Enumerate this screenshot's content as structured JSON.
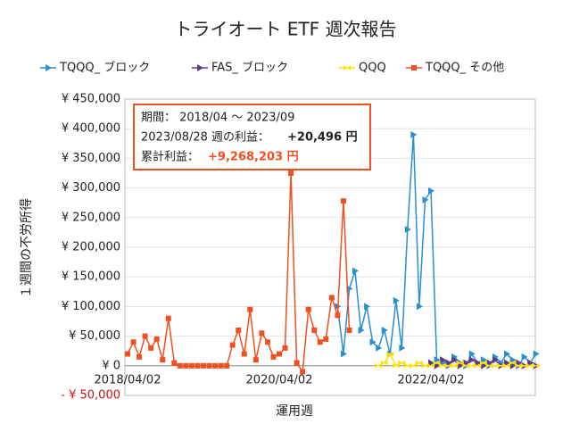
{
  "chart_data": {
    "type": "line",
    "title": "トライオート ETF 週次報告",
    "y_label": "１週間の不労所得",
    "x_label": "運用週",
    "categories": [
      "2018/04/02",
      null,
      null,
      null,
      null,
      null,
      null,
      null,
      null,
      null,
      null,
      null,
      null,
      null,
      null,
      null,
      null,
      null,
      null,
      null,
      null,
      null,
      null,
      null,
      null,
      null,
      "2020/04/02",
      null,
      null,
      null,
      null,
      null,
      null,
      null,
      null,
      null,
      null,
      null,
      null,
      null,
      null,
      null,
      null,
      null,
      null,
      null,
      null,
      null,
      null,
      null,
      null,
      null,
      "2022/04/02",
      null,
      null,
      null,
      null,
      null,
      null,
      null,
      null,
      null,
      null,
      null,
      null,
      null,
      null,
      null,
      null,
      null,
      null
    ],
    "series": [
      {
        "name": "TQQQ_ ブロック",
        "color": "#2a8fd0",
        "marker": "triangle",
        "values": [
          null,
          null,
          null,
          null,
          null,
          null,
          null,
          null,
          null,
          null,
          null,
          null,
          null,
          null,
          null,
          null,
          null,
          null,
          null,
          null,
          null,
          null,
          null,
          null,
          null,
          null,
          null,
          null,
          null,
          null,
          null,
          null,
          null,
          null,
          null,
          null,
          100000,
          20000,
          130000,
          160000,
          60000,
          100000,
          40000,
          30000,
          60000,
          20000,
          110000,
          30000,
          230000,
          390000,
          100000,
          280000,
          295000,
          10000,
          5000,
          0,
          15000,
          5000,
          0,
          20000,
          5000,
          10000,
          0,
          15000,
          5000,
          20000,
          10000,
          0,
          15000,
          5000,
          20000
        ]
      },
      {
        "name": "FAS_ ブロック",
        "color": "#5c3b8a",
        "marker": "triangle",
        "values": [
          null,
          null,
          null,
          null,
          null,
          null,
          null,
          null,
          null,
          null,
          null,
          null,
          null,
          null,
          null,
          null,
          null,
          null,
          null,
          null,
          null,
          null,
          null,
          null,
          null,
          null,
          null,
          null,
          null,
          null,
          null,
          null,
          null,
          null,
          null,
          null,
          null,
          null,
          null,
          null,
          null,
          null,
          null,
          null,
          null,
          null,
          null,
          null,
          null,
          null,
          null,
          null,
          5000,
          0,
          10000,
          5000,
          10000,
          0,
          5000,
          10000,
          5000,
          0,
          5000,
          10000,
          0,
          5000,
          0,
          5000,
          0,
          5000,
          0
        ]
      },
      {
        "name": "QQQ",
        "color": "#ffe000",
        "marker": "bowtie",
        "values": [
          null,
          null,
          null,
          null,
          null,
          null,
          null,
          null,
          null,
          null,
          null,
          null,
          null,
          null,
          null,
          null,
          null,
          null,
          null,
          null,
          null,
          null,
          null,
          null,
          null,
          null,
          null,
          null,
          null,
          null,
          null,
          null,
          null,
          null,
          null,
          null,
          null,
          null,
          null,
          null,
          null,
          null,
          null,
          0,
          5000,
          20000,
          0,
          5000,
          0,
          0,
          5000,
          0,
          0,
          5000,
          0,
          0,
          0,
          5000,
          0,
          0,
          0,
          5000,
          0,
          0,
          0,
          0,
          5000,
          0,
          0,
          0,
          0
        ]
      },
      {
        "name": "TQQQ_ その他",
        "color": "#f05020",
        "marker": "square",
        "values": [
          20000,
          40000,
          15000,
          50000,
          30000,
          45000,
          10000,
          80000,
          5000,
          0,
          0,
          0,
          0,
          0,
          0,
          0,
          0,
          0,
          35000,
          60000,
          20000,
          95000,
          10000,
          55000,
          40000,
          15000,
          20000,
          30000,
          325000,
          5000,
          -10000,
          95000,
          60000,
          40000,
          45000,
          115000,
          85000,
          278000,
          60000,
          null,
          null,
          null,
          null,
          null,
          null,
          null,
          null,
          null,
          null,
          null,
          null,
          null,
          null,
          null,
          null,
          null,
          null,
          null,
          null,
          null,
          null,
          null,
          null,
          null,
          null,
          null,
          null,
          null,
          null,
          null,
          null
        ]
      }
    ],
    "ylim": [
      -50000,
      450000
    ],
    "yticks": [
      {
        "value": -50000,
        "label": "- ¥ 50,000"
      },
      {
        "value": 0,
        "label": "¥ 0"
      },
      {
        "value": 50000,
        "label": "¥ 50,000"
      },
      {
        "value": 100000,
        "label": "¥ 100,000"
      },
      {
        "value": 150000,
        "label": "¥ 150,000"
      },
      {
        "value": 200000,
        "label": "¥ 200,000"
      },
      {
        "value": 250000,
        "label": "¥ 250,000"
      },
      {
        "value": 300000,
        "label": "¥ 300,000"
      },
      {
        "value": 350000,
        "label": "¥ 350,000"
      },
      {
        "value": 400000,
        "label": "¥ 400,000"
      },
      {
        "value": 450000,
        "label": "¥ 450,000"
      }
    ],
    "grid": true,
    "legend": "top",
    "annotation": {
      "period": "期間： 2018/04 ～ 2023/09",
      "week_label": "2023/08/28 週の利益：",
      "week_value": "+20,496 円",
      "total_label": "累計利益：",
      "total_value": "+9,268,203 円"
    }
  }
}
